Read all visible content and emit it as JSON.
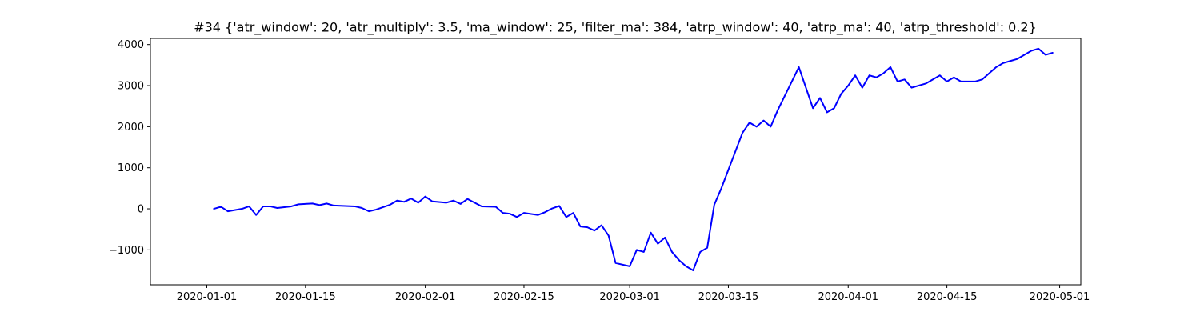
{
  "chart_data": {
    "type": "line",
    "title": "#34 {'atr_window': 20, 'atr_multiply': 3.5, 'ma_window': 25, 'filter_ma': 384, 'atrp_window': 40, 'atrp_ma': 40, 'atrp_threshold': 0.2}",
    "xlabel": "",
    "ylabel": "",
    "xlim": [
      "2019-12-24",
      "2020-05-04"
    ],
    "ylim": [
      -1850,
      4150
    ],
    "x_ticks": [
      "2020-01-01",
      "2020-01-15",
      "2020-02-01",
      "2020-02-15",
      "2020-03-01",
      "2020-03-15",
      "2020-04-01",
      "2020-04-15",
      "2020-05-01"
    ],
    "y_ticks": [
      -1000,
      0,
      1000,
      2000,
      3000,
      4000
    ],
    "y_tick_labels": [
      "−1000",
      "0",
      "1000",
      "2000",
      "3000",
      "4000"
    ],
    "grid": false,
    "legend": "none",
    "series": [
      {
        "color": "#0000ff",
        "points": [
          [
            "2020-01-02",
            0
          ],
          [
            "2020-01-03",
            50
          ],
          [
            "2020-01-04",
            -60
          ],
          [
            "2020-01-06",
            0
          ],
          [
            "2020-01-07",
            60
          ],
          [
            "2020-01-08",
            -150
          ],
          [
            "2020-01-09",
            60
          ],
          [
            "2020-01-10",
            60
          ],
          [
            "2020-01-11",
            20
          ],
          [
            "2020-01-13",
            60
          ],
          [
            "2020-01-14",
            110
          ],
          [
            "2020-01-16",
            130
          ],
          [
            "2020-01-17",
            90
          ],
          [
            "2020-01-18",
            130
          ],
          [
            "2020-01-19",
            80
          ],
          [
            "2020-01-22",
            60
          ],
          [
            "2020-01-23",
            20
          ],
          [
            "2020-01-24",
            -60
          ],
          [
            "2020-01-25",
            -20
          ],
          [
            "2020-01-27",
            100
          ],
          [
            "2020-01-28",
            200
          ],
          [
            "2020-01-29",
            170
          ],
          [
            "2020-01-30",
            250
          ],
          [
            "2020-01-31",
            150
          ],
          [
            "2020-02-01",
            300
          ],
          [
            "2020-02-02",
            180
          ],
          [
            "2020-02-04",
            150
          ],
          [
            "2020-02-05",
            200
          ],
          [
            "2020-02-06",
            120
          ],
          [
            "2020-02-07",
            240
          ],
          [
            "2020-02-08",
            150
          ],
          [
            "2020-02-09",
            60
          ],
          [
            "2020-02-11",
            50
          ],
          [
            "2020-02-12",
            -100
          ],
          [
            "2020-02-13",
            -120
          ],
          [
            "2020-02-14",
            -200
          ],
          [
            "2020-02-15",
            -100
          ],
          [
            "2020-02-17",
            -150
          ],
          [
            "2020-02-18",
            -80
          ],
          [
            "2020-02-19",
            10
          ],
          [
            "2020-02-20",
            70
          ],
          [
            "2020-02-21",
            -200
          ],
          [
            "2020-02-22",
            -100
          ],
          [
            "2020-02-23",
            -430
          ],
          [
            "2020-02-24",
            -450
          ],
          [
            "2020-02-25",
            -530
          ],
          [
            "2020-02-26",
            -400
          ],
          [
            "2020-02-27",
            -650
          ],
          [
            "2020-02-28",
            -1320
          ],
          [
            "2020-03-01",
            -1400
          ],
          [
            "2020-03-02",
            -1000
          ],
          [
            "2020-03-03",
            -1050
          ],
          [
            "2020-03-04",
            -580
          ],
          [
            "2020-03-05",
            -850
          ],
          [
            "2020-03-06",
            -700
          ],
          [
            "2020-03-07",
            -1050
          ],
          [
            "2020-03-08",
            -1250
          ],
          [
            "2020-03-09",
            -1400
          ],
          [
            "2020-03-10",
            -1500
          ],
          [
            "2020-03-11",
            -1050
          ],
          [
            "2020-03-12",
            -950
          ],
          [
            "2020-03-13",
            100
          ],
          [
            "2020-03-14",
            500
          ],
          [
            "2020-03-15",
            950
          ],
          [
            "2020-03-16",
            1400
          ],
          [
            "2020-03-17",
            1850
          ],
          [
            "2020-03-18",
            2100
          ],
          [
            "2020-03-19",
            2000
          ],
          [
            "2020-03-20",
            2150
          ],
          [
            "2020-03-21",
            2000
          ],
          [
            "2020-03-22",
            2400
          ],
          [
            "2020-03-23",
            2750
          ],
          [
            "2020-03-24",
            3100
          ],
          [
            "2020-03-25",
            3450
          ],
          [
            "2020-03-26",
            2950
          ],
          [
            "2020-03-27",
            2450
          ],
          [
            "2020-03-28",
            2700
          ],
          [
            "2020-03-29",
            2350
          ],
          [
            "2020-03-30",
            2450
          ],
          [
            "2020-03-31",
            2800
          ],
          [
            "2020-04-01",
            3000
          ],
          [
            "2020-04-02",
            3250
          ],
          [
            "2020-04-03",
            2950
          ],
          [
            "2020-04-04",
            3250
          ],
          [
            "2020-04-05",
            3200
          ],
          [
            "2020-04-06",
            3300
          ],
          [
            "2020-04-07",
            3450
          ],
          [
            "2020-04-08",
            3100
          ],
          [
            "2020-04-09",
            3150
          ],
          [
            "2020-04-10",
            2950
          ],
          [
            "2020-04-12",
            3050
          ],
          [
            "2020-04-13",
            3150
          ],
          [
            "2020-04-14",
            3250
          ],
          [
            "2020-04-15",
            3100
          ],
          [
            "2020-04-16",
            3200
          ],
          [
            "2020-04-17",
            3100
          ],
          [
            "2020-04-19",
            3100
          ],
          [
            "2020-04-20",
            3150
          ],
          [
            "2020-04-21",
            3300
          ],
          [
            "2020-04-22",
            3450
          ],
          [
            "2020-04-23",
            3550
          ],
          [
            "2020-04-24",
            3600
          ],
          [
            "2020-04-25",
            3650
          ],
          [
            "2020-04-26",
            3750
          ],
          [
            "2020-04-27",
            3850
          ],
          [
            "2020-04-28",
            3900
          ],
          [
            "2020-04-29",
            3750
          ],
          [
            "2020-04-30",
            3800
          ]
        ]
      }
    ]
  }
}
